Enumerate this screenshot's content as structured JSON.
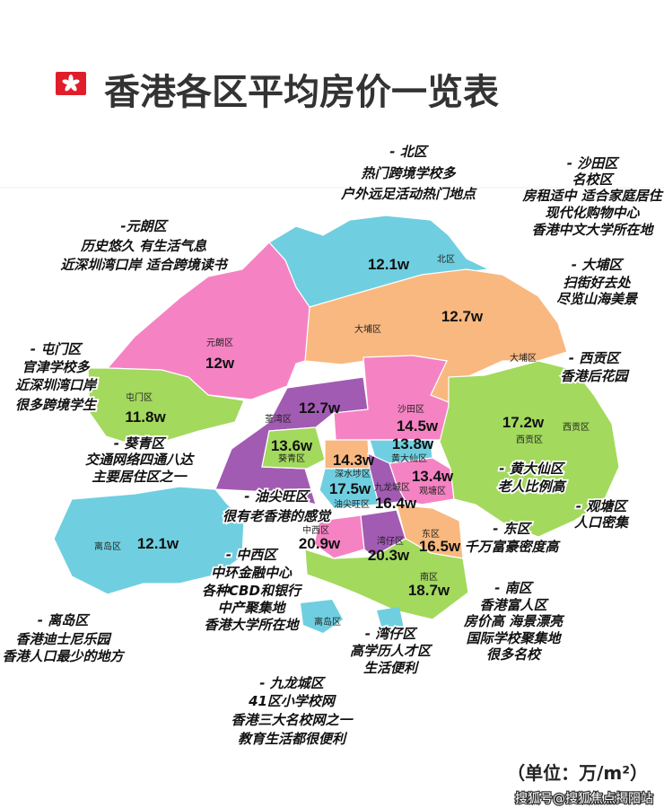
{
  "header": {
    "title": "香港各区平均房价一览表",
    "flag_icon": "hong-kong-flag-icon"
  },
  "districts": {
    "north": {
      "name": "北区",
      "price": "12.1w",
      "color": "#6fcfe0"
    },
    "taipo": {
      "name": "大埔区",
      "price": "12.7w",
      "color": "#f9b87f"
    },
    "yuenlong": {
      "name": "元朗区",
      "price": "12w",
      "color": "#f583c3"
    },
    "tuenmun": {
      "name": "屯门区",
      "price": "11.8w",
      "color": "#a3d95d"
    },
    "tsuenwan": {
      "name": "荃湾区",
      "price": "12.7w",
      "color": "#a25bb3"
    },
    "kwaitsing": {
      "name": "葵青区",
      "price": "13.6w",
      "color": "#a3d95d"
    },
    "shatin": {
      "name": "沙田区",
      "price": "14.5w",
      "color": "#f583c3"
    },
    "wongtaisin": {
      "name": "黄大仙区",
      "price": "13.8w",
      "color": "#6fcfe0"
    },
    "shamshuipo": {
      "name": "深水埗区",
      "price": "14.3w",
      "color": "#f9b87f"
    },
    "kwuntong": {
      "name": "观塘区",
      "price": "13.4w",
      "color": "#f583c3"
    },
    "yautsimmong": {
      "name": "油尖旺区",
      "price": "17.5w",
      "color": "#6fcfe0"
    },
    "kowlooncity": {
      "name": "九龙城区",
      "price": "16.4w",
      "color": "#a25bb3"
    },
    "central": {
      "name": "中西区",
      "price": "20.9w",
      "color": "#f583c3"
    },
    "wanchai": {
      "name": "湾仔区",
      "price": "20.3w",
      "color": "#a25bb3"
    },
    "eastern": {
      "name": "东区",
      "price": "16.5w",
      "color": "#f9b87f"
    },
    "southern": {
      "name": "南区",
      "price": "18.7w",
      "color": "#a3d95d"
    },
    "saikung": {
      "name": "西贡区",
      "price": "17.2w",
      "color": "#a3d95d"
    },
    "islands": {
      "name": "离岛区",
      "price": "12.1w",
      "color": "#6fcfe0"
    }
  },
  "annotations": {
    "north": {
      "lines": [
        "- 北区",
        "热门跨境学校多",
        "户外远足活动热门地点"
      ]
    },
    "shatin": {
      "lines": [
        "- 沙田区",
        "名校区",
        "房租适中 适合家庭居住",
        "现代化购物中心",
        "香港中文大学所在地"
      ]
    },
    "yuenlong": {
      "lines": [
        "-元朗区",
        "历史悠久 有生活气息",
        "近深圳湾口岸 适合跨境读书"
      ]
    },
    "taipo": {
      "lines": [
        "- 大埔区",
        "扫街好去处",
        "尽览山海美景"
      ]
    },
    "tuenmun": {
      "lines": [
        "- 屯门区",
        "官津学校多",
        "近深圳湾口岸",
        "很多跨境学生"
      ]
    },
    "saikung": {
      "lines": [
        "- 西贡区",
        "香港后花园"
      ]
    },
    "kwaitsing": {
      "lines": [
        "- 葵青区",
        "交通网络四通八达",
        "主要居住区之一"
      ]
    },
    "yautsimmong": {
      "lines": [
        "- 油尖旺区",
        "很有老香港的感觉"
      ]
    },
    "wongtaisin": {
      "lines": [
        "- 黄大仙区",
        "老人比例高"
      ]
    },
    "kwuntong": {
      "lines": [
        "- 观塘区",
        "人口密集"
      ]
    },
    "eastern": {
      "lines": [
        "- 东区",
        "千万富豪密度高"
      ]
    },
    "central": {
      "lines": [
        "- 中西区",
        "中环金融中心",
        "各种CBD和银行",
        "中产聚集地",
        "香港大学所在地"
      ]
    },
    "southern": {
      "lines": [
        "- 南区",
        "香港富人区",
        "房价高 海景漂亮",
        "国际学校聚集地",
        "很多名校"
      ]
    },
    "islands": {
      "lines": [
        "- 离岛区",
        "香港迪士尼乐园",
        "香港人口最少的地方"
      ]
    },
    "wanchai": {
      "lines": [
        "- 湾仔区",
        "高学历人才区",
        "生活便利"
      ]
    },
    "kowlooncity": {
      "lines": [
        "- 九龙城区",
        "41区小学校网",
        "香港三大名校网之一",
        "教育生活都很便利"
      ]
    }
  },
  "footer": {
    "unit": "（单位：万/m²）",
    "watermark": "搜狐号@搜狐焦点揭阳站"
  }
}
